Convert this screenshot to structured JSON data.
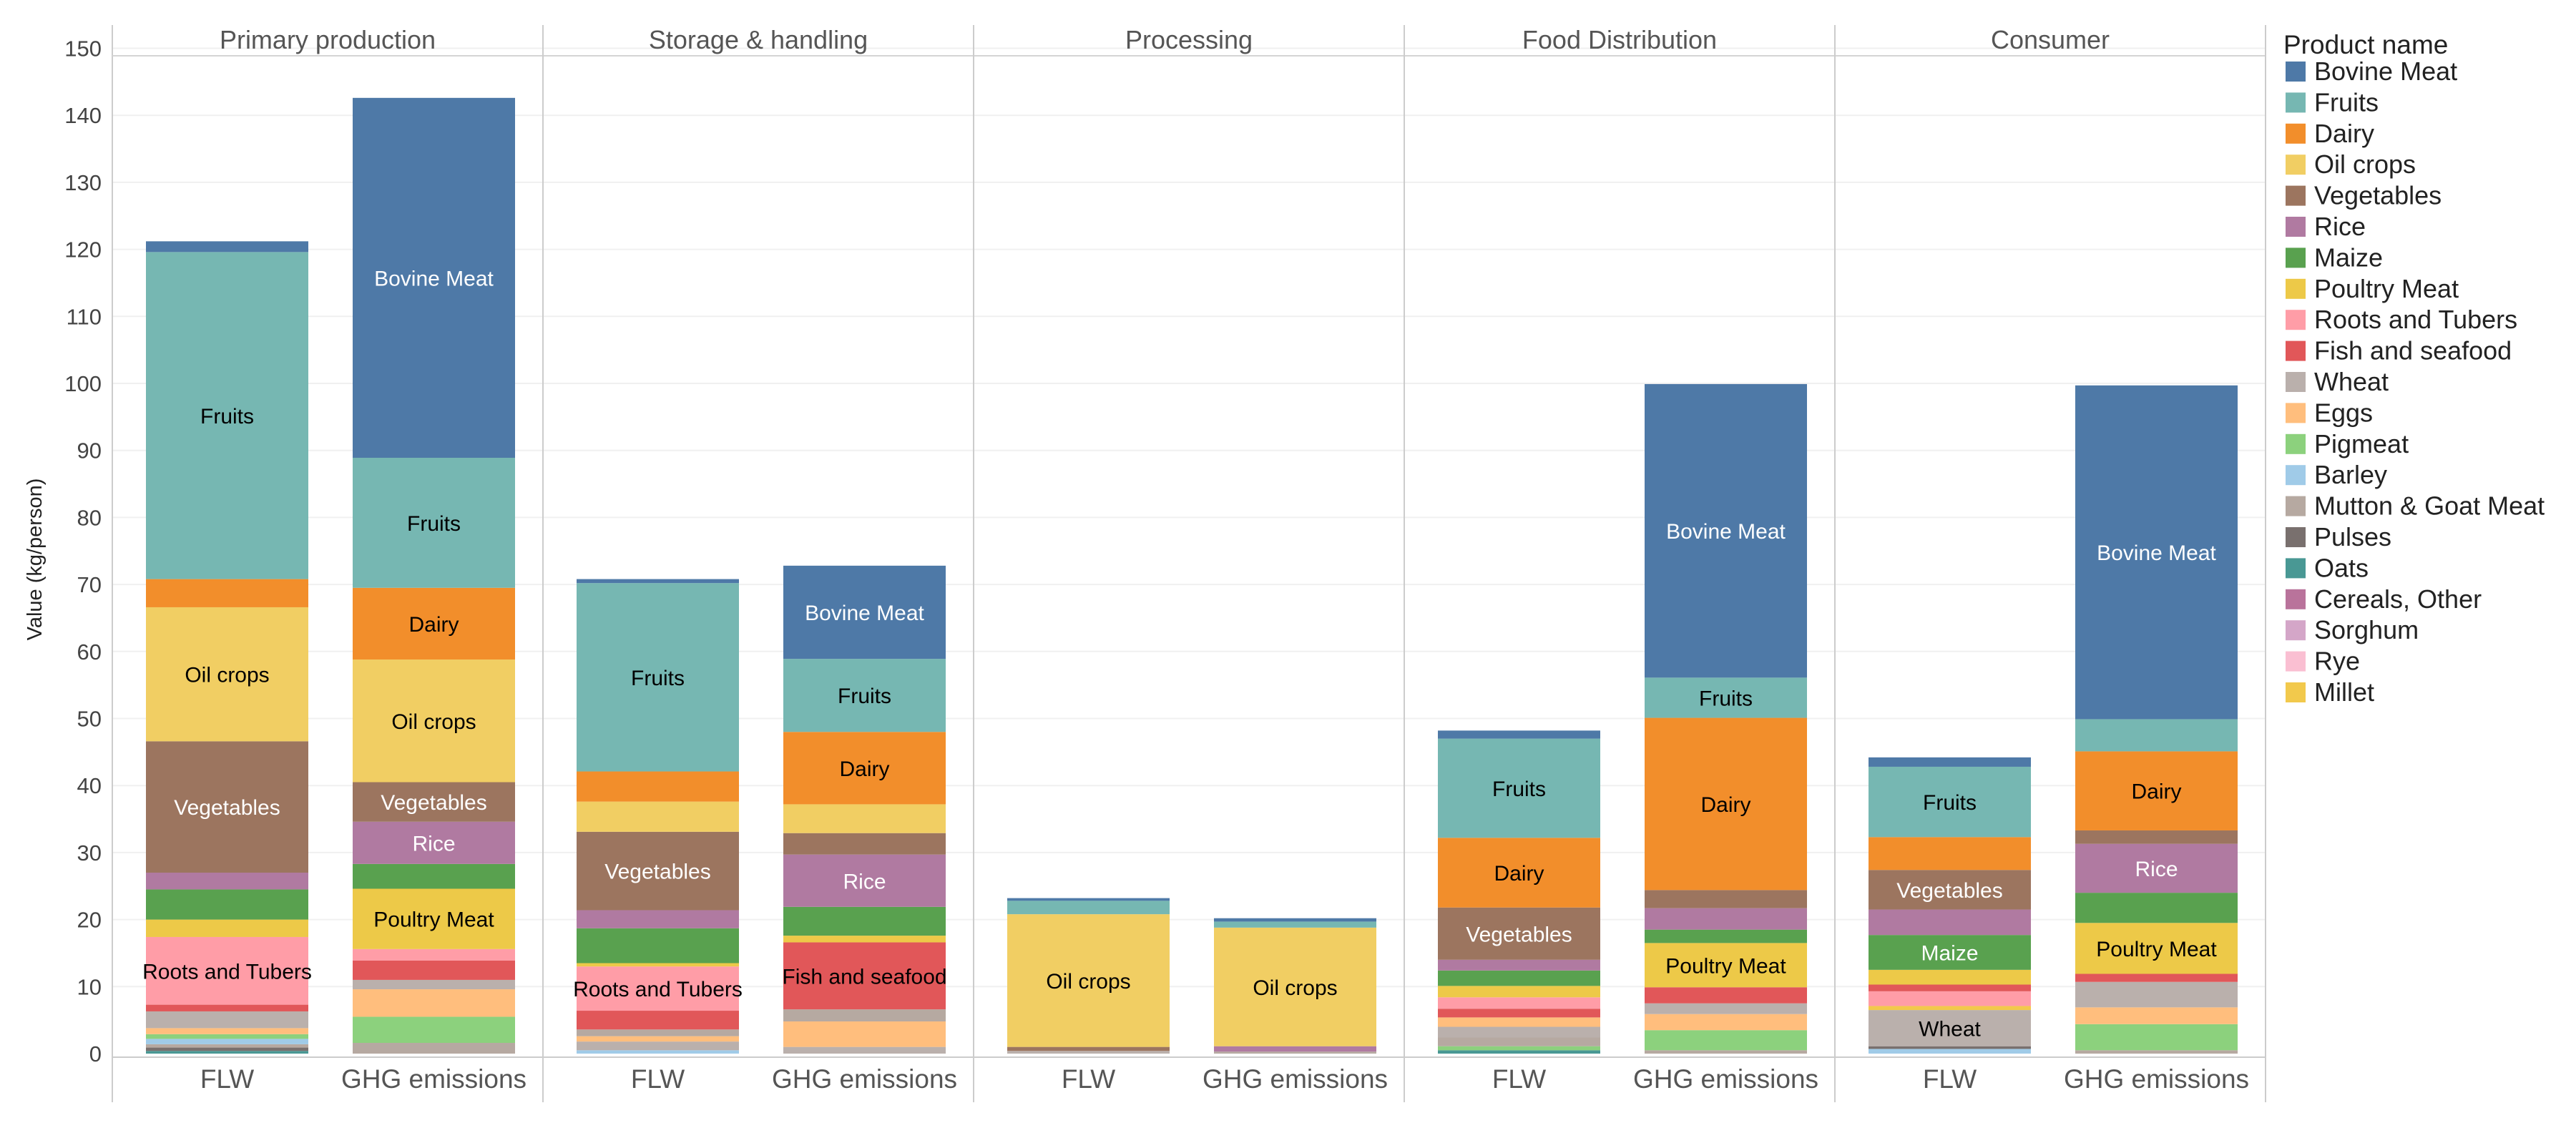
{
  "chart_data": {
    "type": "bar",
    "stacked": true,
    "ylabel": "Value (kg/person)",
    "ylim": [
      0,
      150
    ],
    "y_ticks": [
      0,
      10,
      20,
      30,
      40,
      50,
      60,
      70,
      80,
      90,
      100,
      110,
      120,
      130,
      140,
      150
    ],
    "grid": true,
    "panels": [
      "Primary production",
      "Storage & handling",
      "Processing",
      "Food Distribution",
      "Consumer"
    ],
    "categories": [
      "FLW",
      "GHG emissions"
    ],
    "legend": {
      "title": "Product name",
      "placement": "right",
      "items": [
        {
          "name": "Bovine Meat",
          "color": "#4e79a7"
        },
        {
          "name": "Fruits",
          "color": "#76b7b2"
        },
        {
          "name": "Dairy",
          "color": "#f28e2b"
        },
        {
          "name": "Oil crops",
          "color": "#f1ce63"
        },
        {
          "name": "Vegetables",
          "color": "#9c755f"
        },
        {
          "name": "Rice",
          "color": "#b07aa1"
        },
        {
          "name": "Maize",
          "color": "#59a14f"
        },
        {
          "name": "Poultry Meat",
          "color": "#edc948"
        },
        {
          "name": "Roots and Tubers",
          "color": "#ff9da7"
        },
        {
          "name": "Fish and seafood",
          "color": "#e15759"
        },
        {
          "name": "Wheat",
          "color": "#bab0ac"
        },
        {
          "name": "Eggs",
          "color": "#ffbe7d"
        },
        {
          "name": "Pigmeat",
          "color": "#8cd17d"
        },
        {
          "name": "Barley",
          "color": "#a0cbe8"
        },
        {
          "name": "Mutton & Goat Meat",
          "color": "#b6a9a1"
        },
        {
          "name": "Pulses",
          "color": "#79706e"
        },
        {
          "name": "Oats",
          "color": "#499894"
        },
        {
          "name": "Cereals, Other",
          "color": "#b9739b"
        },
        {
          "name": "Sorghum",
          "color": "#d4a6c8"
        },
        {
          "name": "Rye",
          "color": "#fabfd2"
        },
        {
          "name": "Millet",
          "color": "#f2c94c"
        }
      ]
    },
    "bars": [
      {
        "panel": "Primary production",
        "category": "FLW",
        "segments": [
          {
            "product": "Oats",
            "value": 0.4
          },
          {
            "product": "Pulses",
            "value": 0.5
          },
          {
            "product": "Mutton & Goat Meat",
            "value": 0.5
          },
          {
            "product": "Barley",
            "value": 0.8
          },
          {
            "product": "Pigmeat",
            "value": 0.7
          },
          {
            "product": "Eggs",
            "value": 0.9
          },
          {
            "product": "Wheat",
            "value": 2.5
          },
          {
            "product": "Fish and seafood",
            "value": 1.0
          },
          {
            "product": "Roots and Tubers",
            "value": 10.1,
            "label": "Roots and Tubers",
            "label_color": "#000000"
          },
          {
            "product": "Poultry Meat",
            "value": 2.6
          },
          {
            "product": "Maize",
            "value": 4.5
          },
          {
            "product": "Rice",
            "value": 2.5
          },
          {
            "product": "Vegetables",
            "value": 19.6,
            "label": "Vegetables",
            "label_color": "#ffffff"
          },
          {
            "product": "Oil crops",
            "value": 20.0,
            "label": "Oil crops",
            "label_color": "#000000"
          },
          {
            "product": "Dairy",
            "value": 4.2
          },
          {
            "product": "Fruits",
            "value": 48.8,
            "label": "Fruits",
            "label_color": "#000000"
          },
          {
            "product": "Bovine Meat",
            "value": 1.6
          }
        ]
      },
      {
        "panel": "Primary production",
        "category": "GHG emissions",
        "segments": [
          {
            "product": "Mutton & Goat Meat",
            "value": 1.6
          },
          {
            "product": "Pigmeat",
            "value": 3.9
          },
          {
            "product": "Eggs",
            "value": 4.1
          },
          {
            "product": "Wheat",
            "value": 1.4
          },
          {
            "product": "Fish and seafood",
            "value": 2.9
          },
          {
            "product": "Roots and Tubers",
            "value": 1.7
          },
          {
            "product": "Poultry Meat",
            "value": 9.0,
            "label": "Poultry Meat",
            "label_color": "#000000"
          },
          {
            "product": "Maize",
            "value": 3.7
          },
          {
            "product": "Rice",
            "value": 6.3,
            "label": "Rice",
            "label_color": "#ffffff"
          },
          {
            "product": "Vegetables",
            "value": 5.9,
            "label": "Vegetables",
            "label_color": "#ffffff"
          },
          {
            "product": "Oil crops",
            "value": 18.3,
            "label": "Oil crops",
            "label_color": "#000000"
          },
          {
            "product": "Dairy",
            "value": 10.7,
            "label": "Dairy",
            "label_color": "#000000"
          },
          {
            "product": "Fruits",
            "value": 19.4,
            "label": "Fruits",
            "label_color": "#000000"
          },
          {
            "product": "Bovine Meat",
            "value": 53.7,
            "label": "Bovine Meat",
            "label_color": "#ffffff"
          }
        ]
      },
      {
        "panel": "Storage & handling",
        "category": "FLW",
        "segments": [
          {
            "product": "Barley",
            "value": 0.5
          },
          {
            "product": "Wheat",
            "value": 1.3
          },
          {
            "product": "Eggs",
            "value": 0.8
          },
          {
            "product": "Mutton & Goat Meat",
            "value": 1.0
          },
          {
            "product": "Fish and seafood",
            "value": 2.8
          },
          {
            "product": "Roots and Tubers",
            "value": 6.6,
            "label": "Roots and Tubers",
            "label_color": "#000000"
          },
          {
            "product": "Poultry Meat",
            "value": 0.5
          },
          {
            "product": "Maize",
            "value": 5.2
          },
          {
            "product": "Rice",
            "value": 2.7
          },
          {
            "product": "Vegetables",
            "value": 11.7,
            "label": "Vegetables",
            "label_color": "#ffffff"
          },
          {
            "product": "Oil crops",
            "value": 4.5
          },
          {
            "product": "Dairy",
            "value": 4.5
          },
          {
            "product": "Fruits",
            "value": 28.1,
            "label": "Fruits",
            "label_color": "#000000"
          },
          {
            "product": "Bovine Meat",
            "value": 0.6
          }
        ]
      },
      {
        "panel": "Storage & handling",
        "category": "GHG emissions",
        "segments": [
          {
            "product": "Wheat",
            "value": 1.0
          },
          {
            "product": "Eggs",
            "value": 3.8
          },
          {
            "product": "Mutton & Goat Meat",
            "value": 1.8
          },
          {
            "product": "Fish and seafood",
            "value": 10.0,
            "label": "Fish and seafood",
            "label_color": "#000000"
          },
          {
            "product": "Poultry Meat",
            "value": 1.0
          },
          {
            "product": "Maize",
            "value": 4.3
          },
          {
            "product": "Rice",
            "value": 7.8,
            "label": "Rice",
            "label_color": "#ffffff"
          },
          {
            "product": "Vegetables",
            "value": 3.2
          },
          {
            "product": "Oil crops",
            "value": 4.3
          },
          {
            "product": "Dairy",
            "value": 10.8,
            "label": "Dairy",
            "label_color": "#000000"
          },
          {
            "product": "Fruits",
            "value": 10.9,
            "label": "Fruits",
            "label_color": "#000000"
          },
          {
            "product": "Bovine Meat",
            "value": 13.9,
            "label": "Bovine Meat",
            "label_color": "#ffffff"
          }
        ]
      },
      {
        "panel": "Processing",
        "category": "FLW",
        "segments": [
          {
            "product": "Wheat",
            "value": 0.4
          },
          {
            "product": "Vegetables",
            "value": 0.6
          },
          {
            "product": "Oil crops",
            "value": 19.8,
            "label": "Oil crops",
            "label_color": "#000000"
          },
          {
            "product": "Fruits",
            "value": 2.0
          },
          {
            "product": "Bovine Meat",
            "value": 0.4
          }
        ]
      },
      {
        "panel": "Processing",
        "category": "GHG emissions",
        "segments": [
          {
            "product": "Mutton & Goat Meat",
            "value": 0.3
          },
          {
            "product": "Rice",
            "value": 0.8
          },
          {
            "product": "Oil crops",
            "value": 17.7,
            "label": "Oil crops",
            "label_color": "#000000"
          },
          {
            "product": "Fruits",
            "value": 0.9
          },
          {
            "product": "Bovine Meat",
            "value": 0.5
          }
        ]
      },
      {
        "panel": "Food Distribution",
        "category": "FLW",
        "segments": [
          {
            "product": "Oats",
            "value": 0.5
          },
          {
            "product": "Pigmeat",
            "value": 0.6
          },
          {
            "product": "Mutton & Goat Meat",
            "value": 1.3
          },
          {
            "product": "Wheat",
            "value": 1.6
          },
          {
            "product": "Eggs",
            "value": 1.4
          },
          {
            "product": "Fish and seafood",
            "value": 1.3
          },
          {
            "product": "Roots and Tubers",
            "value": 1.7
          },
          {
            "product": "Poultry Meat",
            "value": 1.7
          },
          {
            "product": "Maize",
            "value": 2.3
          },
          {
            "product": "Rice",
            "value": 1.6
          },
          {
            "product": "Vegetables",
            "value": 7.8,
            "label": "Vegetables",
            "label_color": "#ffffff"
          },
          {
            "product": "Dairy",
            "value": 10.4,
            "label": "Dairy",
            "label_color": "#000000"
          },
          {
            "product": "Fruits",
            "value": 14.8,
            "label": "Fruits",
            "label_color": "#000000"
          },
          {
            "product": "Bovine Meat",
            "value": 1.2
          }
        ]
      },
      {
        "panel": "Food Distribution",
        "category": "GHG emissions",
        "segments": [
          {
            "product": "Mutton & Goat Meat",
            "value": 0.5
          },
          {
            "product": "Pigmeat",
            "value": 3.0
          },
          {
            "product": "Eggs",
            "value": 2.4
          },
          {
            "product": "Wheat",
            "value": 1.6
          },
          {
            "product": "Fish and seafood",
            "value": 2.4
          },
          {
            "product": "Poultry Meat",
            "value": 6.6,
            "label": "Poultry Meat",
            "label_color": "#000000"
          },
          {
            "product": "Maize",
            "value": 2.0
          },
          {
            "product": "Rice",
            "value": 3.2
          },
          {
            "product": "Vegetables",
            "value": 2.7
          },
          {
            "product": "Dairy",
            "value": 25.7,
            "label": "Dairy",
            "label_color": "#000000"
          },
          {
            "product": "Fruits",
            "value": 6.0,
            "label": "Fruits",
            "label_color": "#000000"
          },
          {
            "product": "Bovine Meat",
            "value": 43.8,
            "label": "Bovine Meat",
            "label_color": "#ffffff"
          }
        ]
      },
      {
        "panel": "Consumer",
        "category": "FLW",
        "segments": [
          {
            "product": "Barley",
            "value": 0.7
          },
          {
            "product": "Pulses",
            "value": 0.4
          },
          {
            "product": "Wheat",
            "value": 5.4,
            "label": "Wheat",
            "label_color": "#000000"
          },
          {
            "product": "Millet",
            "value": 0.6
          },
          {
            "product": "Roots and Tubers",
            "value": 2.2
          },
          {
            "product": "Fish and seafood",
            "value": 1.0
          },
          {
            "product": "Poultry Meat",
            "value": 2.2
          },
          {
            "product": "Maize",
            "value": 5.2,
            "label": "Maize",
            "label_color": "#ffffff"
          },
          {
            "product": "Rice",
            "value": 3.8
          },
          {
            "product": "Vegetables",
            "value": 5.9,
            "label": "Vegetables",
            "label_color": "#ffffff"
          },
          {
            "product": "Dairy",
            "value": 4.9
          },
          {
            "product": "Fruits",
            "value": 10.5,
            "label": "Fruits",
            "label_color": "#000000"
          },
          {
            "product": "Bovine Meat",
            "value": 1.4
          }
        ]
      },
      {
        "panel": "Consumer",
        "category": "GHG emissions",
        "segments": [
          {
            "product": "Mutton & Goat Meat",
            "value": 0.5
          },
          {
            "product": "Pigmeat",
            "value": 3.9
          },
          {
            "product": "Eggs",
            "value": 2.5
          },
          {
            "product": "Wheat",
            "value": 3.8
          },
          {
            "product": "Fish and seafood",
            "value": 1.2
          },
          {
            "product": "Poultry Meat",
            "value": 7.6,
            "label": "Poultry Meat",
            "label_color": "#000000"
          },
          {
            "product": "Maize",
            "value": 4.5
          },
          {
            "product": "Rice",
            "value": 7.3,
            "label": "Rice",
            "label_color": "#ffffff"
          },
          {
            "product": "Vegetables",
            "value": 2.0
          },
          {
            "product": "Dairy",
            "value": 11.8,
            "label": "Dairy",
            "label_color": "#000000"
          },
          {
            "product": "Fruits",
            "value": 4.8
          },
          {
            "product": "Bovine Meat",
            "value": 49.8,
            "label": "Bovine Meat",
            "label_color": "#ffffff"
          }
        ]
      }
    ]
  }
}
